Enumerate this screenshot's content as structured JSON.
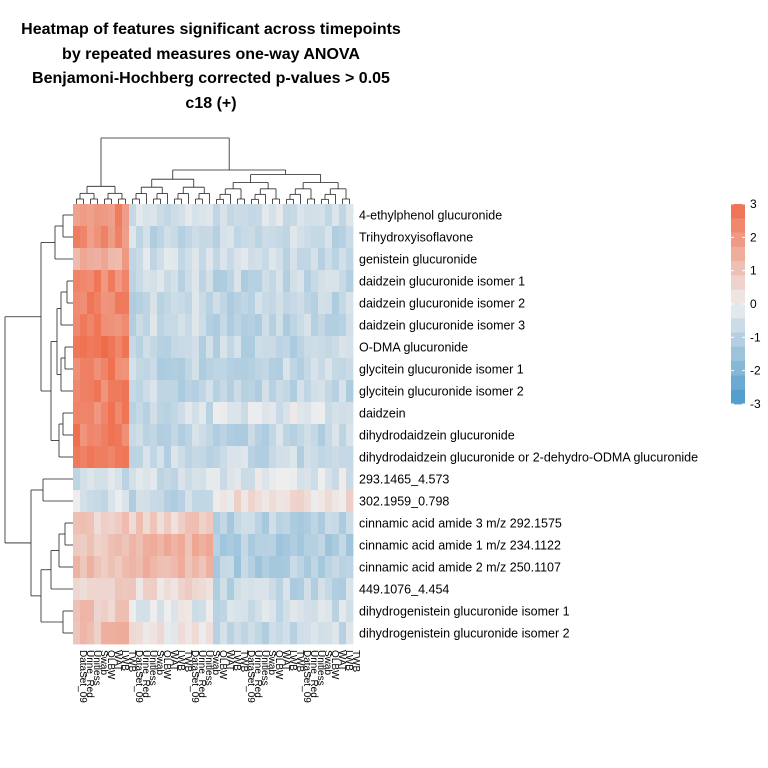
{
  "chart_data": {
    "type": "heatmap",
    "title_lines": [
      "Heatmap of features significant across timepoints",
      "by repeated measures one-way ANOVA",
      "Benjamoni-Hochberg corrected p-values > 0.05",
      "c18 (+)"
    ],
    "rows": [
      "4-ethylphenol glucuronide",
      "Trihydroxyisoflavone",
      "genistein glucuronide",
      "daidzein glucuronide isomer 1",
      "daidzein glucuronide isomer 2",
      "daidzein glucuronide isomer 3",
      "O-DMA glucuronide",
      "glycitein glucuronide isomer 1",
      "glycitein glucuronide isomer 2",
      "daidzein",
      "dihydrodaidzein glucuronide",
      "dihydrodaidzein glucuronide or 2-dehydro-ODMA glucuronide",
      "293.1465_4.573",
      "302.1959_0.798",
      "cinnamic acid amide 3 m/z 292.1575",
      "cinnamic acid amide 1  m/z 234.1122",
      "cinnamic acid amide 2 m/z 250.1107",
      "449.1076_4.454",
      "dihydrogenistein glucuronide isomer 1",
      "dihydrogenistein glucuronide isomer 2"
    ],
    "n_columns": 40,
    "column_groups": [
      {
        "span": 8,
        "description": "high",
        "row_levels": [
          2.2,
          2.2,
          1.6,
          2.4,
          2.4,
          2.4,
          2.6,
          2.5,
          2.5,
          2.4,
          2.5,
          2.4,
          -0.6,
          -0.4,
          0.8,
          0.9,
          1.0,
          0.6,
          0.9,
          1.1
        ]
      },
      {
        "span": 12,
        "description": "mid",
        "row_levels": [
          -0.6,
          -0.7,
          -0.6,
          -0.7,
          -0.7,
          -0.7,
          -0.8,
          -0.8,
          -0.8,
          -0.6,
          -0.8,
          -0.7,
          -0.5,
          -0.8,
          0.7,
          1.2,
          1.3,
          0.5,
          -0.2,
          0.2
        ]
      },
      {
        "span": 20,
        "description": "low",
        "row_levels": [
          -0.6,
          -0.7,
          -0.6,
          -0.8,
          -0.8,
          -0.8,
          -0.8,
          -0.8,
          -0.8,
          -0.3,
          -0.8,
          -0.7,
          -0.3,
          0.3,
          -0.9,
          -1.1,
          -1.1,
          -0.8,
          -0.6,
          -0.7
        ]
      }
    ],
    "legend": {
      "ticks": [
        3,
        2,
        1,
        0,
        -1,
        -2,
        -3
      ],
      "range": [
        -3,
        3
      ],
      "colors": {
        "low": "#4a98c9",
        "mid": "#eeeeee",
        "high": "#ef6c4a"
      }
    },
    "column_labels_visible": [
      "DataSet_09",
      "Urine_Red",
      "Unitless",
      "Swab",
      "QLBW",
      "WAT",
      "LWB",
      "TWB"
    ]
  }
}
